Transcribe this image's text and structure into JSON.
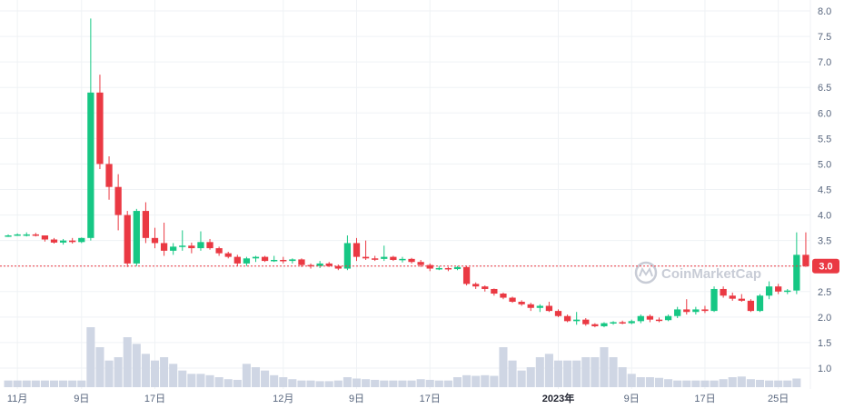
{
  "colors": {
    "up": "#16c784",
    "down": "#ea3943",
    "volume": "#cfd6e4",
    "grid": "#eff2f5",
    "axis_text": "#58667e",
    "current_line": "#ea3943",
    "watermark": "#c8ccd6"
  },
  "watermark": {
    "text": "CoinMarketCap",
    "icon": "coinmarketcap-logo-icon"
  },
  "current_price": {
    "label": "3.0",
    "value": 3.0
  },
  "chart_data": {
    "type": "candlestick",
    "y_axis": {
      "position": "right",
      "min": 0.7,
      "max": 8.0,
      "ticks": [
        "8.0",
        "7.5",
        "7.0",
        "6.5",
        "6.0",
        "5.5",
        "5.0",
        "4.5",
        "4.0",
        "3.5",
        "3.0",
        "2.5",
        "2.0",
        "1.5",
        "1.0"
      ]
    },
    "x_axis": {
      "ticks": [
        {
          "label": "11月",
          "index": 1,
          "bold": false
        },
        {
          "label": "9日",
          "index": 8,
          "bold": false
        },
        {
          "label": "17日",
          "index": 16,
          "bold": false
        },
        {
          "label": "12月",
          "index": 30,
          "bold": false
        },
        {
          "label": "9日",
          "index": 38,
          "bold": false
        },
        {
          "label": "17日",
          "index": 46,
          "bold": false
        },
        {
          "label": "2023年",
          "index": 60,
          "bold": true
        },
        {
          "label": "9日",
          "index": 68,
          "bold": false
        },
        {
          "label": "17日",
          "index": 76,
          "bold": false
        },
        {
          "label": "25日",
          "index": 84,
          "bold": false
        }
      ]
    },
    "count": 87,
    "ohlc": [
      [
        3.6,
        3.62,
        3.57,
        3.6
      ],
      [
        3.6,
        3.64,
        3.59,
        3.62
      ],
      [
        3.62,
        3.66,
        3.58,
        3.62
      ],
      [
        3.62,
        3.65,
        3.58,
        3.6
      ],
      [
        3.6,
        3.6,
        3.48,
        3.52
      ],
      [
        3.52,
        3.55,
        3.44,
        3.46
      ],
      [
        3.46,
        3.53,
        3.42,
        3.5
      ],
      [
        3.5,
        3.55,
        3.44,
        3.47
      ],
      [
        3.47,
        3.56,
        3.45,
        3.55
      ],
      [
        3.55,
        7.85,
        3.5,
        6.4
      ],
      [
        6.4,
        6.75,
        4.9,
        5.0
      ],
      [
        5.0,
        5.15,
        4.3,
        4.55
      ],
      [
        4.55,
        4.8,
        3.7,
        4.0
      ],
      [
        4.0,
        4.08,
        2.98,
        3.05
      ],
      [
        3.05,
        4.12,
        3.0,
        4.08
      ],
      [
        4.08,
        4.25,
        3.45,
        3.55
      ],
      [
        3.55,
        3.75,
        3.35,
        3.45
      ],
      [
        3.45,
        3.85,
        3.2,
        3.3
      ],
      [
        3.3,
        3.45,
        3.22,
        3.38
      ],
      [
        3.38,
        3.7,
        3.3,
        3.4
      ],
      [
        3.4,
        3.46,
        3.25,
        3.35
      ],
      [
        3.35,
        3.68,
        3.3,
        3.47
      ],
      [
        3.47,
        3.53,
        3.32,
        3.35
      ],
      [
        3.35,
        3.38,
        3.2,
        3.25
      ],
      [
        3.25,
        3.28,
        3.15,
        3.18
      ],
      [
        3.18,
        3.22,
        3.0,
        3.05
      ],
      [
        3.05,
        3.18,
        3.0,
        3.15
      ],
      [
        3.15,
        3.2,
        3.08,
        3.18
      ],
      [
        3.18,
        3.2,
        3.08,
        3.1
      ],
      [
        3.1,
        3.2,
        3.08,
        3.12
      ],
      [
        3.12,
        3.18,
        3.05,
        3.1
      ],
      [
        3.1,
        3.15,
        3.05,
        3.13
      ],
      [
        3.13,
        3.15,
        2.98,
        3.02
      ],
      [
        3.02,
        3.05,
        2.95,
        3.0
      ],
      [
        3.0,
        3.1,
        2.96,
        3.05
      ],
      [
        3.05,
        3.08,
        2.98,
        3.0
      ],
      [
        3.0,
        3.03,
        2.92,
        2.95
      ],
      [
        2.95,
        3.6,
        2.92,
        3.45
      ],
      [
        3.45,
        3.55,
        3.1,
        3.18
      ],
      [
        3.18,
        3.5,
        3.12,
        3.15
      ],
      [
        3.15,
        3.2,
        3.1,
        3.14
      ],
      [
        3.14,
        3.4,
        3.1,
        3.18
      ],
      [
        3.18,
        3.2,
        3.1,
        3.12
      ],
      [
        3.12,
        3.18,
        3.07,
        3.14
      ],
      [
        3.14,
        3.16,
        3.05,
        3.08
      ],
      [
        3.08,
        3.12,
        2.98,
        3.02
      ],
      [
        3.02,
        3.05,
        2.9,
        2.95
      ],
      [
        2.95,
        3.0,
        2.92,
        2.96
      ],
      [
        2.96,
        2.98,
        2.9,
        2.94
      ],
      [
        2.94,
        3.0,
        2.92,
        2.98
      ],
      [
        2.98,
        3.0,
        2.62,
        2.65
      ],
      [
        2.65,
        2.68,
        2.55,
        2.6
      ],
      [
        2.6,
        2.62,
        2.5,
        2.55
      ],
      [
        2.55,
        2.56,
        2.42,
        2.46
      ],
      [
        2.46,
        2.48,
        2.35,
        2.38
      ],
      [
        2.38,
        2.4,
        2.28,
        2.3
      ],
      [
        2.3,
        2.33,
        2.22,
        2.25
      ],
      [
        2.25,
        2.28,
        2.12,
        2.18
      ],
      [
        2.18,
        2.25,
        2.1,
        2.22
      ],
      [
        2.22,
        2.3,
        2.1,
        2.12
      ],
      [
        2.12,
        2.15,
        2.0,
        2.02
      ],
      [
        2.02,
        2.05,
        1.9,
        1.92
      ],
      [
        1.92,
        2.1,
        1.85,
        1.95
      ],
      [
        1.95,
        1.98,
        1.83,
        1.86
      ],
      [
        1.86,
        1.88,
        1.8,
        1.82
      ],
      [
        1.82,
        1.9,
        1.8,
        1.88
      ],
      [
        1.88,
        1.92,
        1.85,
        1.9
      ],
      [
        1.9,
        1.93,
        1.86,
        1.88
      ],
      [
        1.88,
        1.95,
        1.86,
        1.92
      ],
      [
        1.92,
        2.05,
        1.88,
        2.02
      ],
      [
        2.02,
        2.05,
        1.9,
        1.95
      ],
      [
        1.95,
        1.99,
        1.9,
        1.94
      ],
      [
        1.94,
        2.05,
        1.92,
        2.02
      ],
      [
        2.02,
        2.2,
        1.98,
        2.15
      ],
      [
        2.15,
        2.35,
        2.05,
        2.1
      ],
      [
        2.1,
        2.2,
        2.05,
        2.15
      ],
      [
        2.15,
        2.22,
        2.08,
        2.12
      ],
      [
        2.12,
        2.6,
        2.1,
        2.55
      ],
      [
        2.55,
        2.6,
        2.38,
        2.42
      ],
      [
        2.42,
        2.48,
        2.32,
        2.36
      ],
      [
        2.36,
        2.45,
        2.3,
        2.32
      ],
      [
        2.32,
        2.35,
        2.1,
        2.12
      ],
      [
        2.12,
        2.45,
        2.1,
        2.42
      ],
      [
        2.42,
        2.7,
        2.35,
        2.6
      ],
      [
        2.6,
        2.65,
        2.45,
        2.5
      ],
      [
        2.5,
        2.55,
        2.45,
        2.52
      ],
      [
        2.52,
        3.66,
        2.45,
        3.22
      ]
    ],
    "last_candle": [
      3.22,
      3.66,
      2.98,
      3.0
    ],
    "volume": [
      1,
      1,
      1,
      1,
      1,
      1,
      1,
      1,
      1,
      9,
      6,
      4,
      4.5,
      7.5,
      6.5,
      5,
      4,
      4.5,
      3.5,
      2.5,
      2,
      2,
      1.8,
      1.5,
      1.2,
      1.1,
      3.5,
      3,
      2.5,
      1.8,
      1.5,
      1.2,
      1,
      1,
      0.9,
      0.9,
      1,
      1.5,
      1.3,
      1.2,
      1.1,
      1,
      1,
      1,
      1,
      1.2,
      1.1,
      1,
      1,
      1.5,
      1.8,
      1.7,
      1.8,
      1.7,
      6,
      4,
      2.5,
      3,
      4.5,
      5,
      4,
      4,
      4,
      4.5,
      4.5,
      6,
      4.5,
      3,
      2,
      1.5,
      1.5,
      1.4,
      1.2,
      1,
      1,
      1,
      1,
      1,
      1.2,
      1.5,
      1.6,
      1.2,
      1.1,
      1,
      1,
      1,
      1.3
    ]
  }
}
